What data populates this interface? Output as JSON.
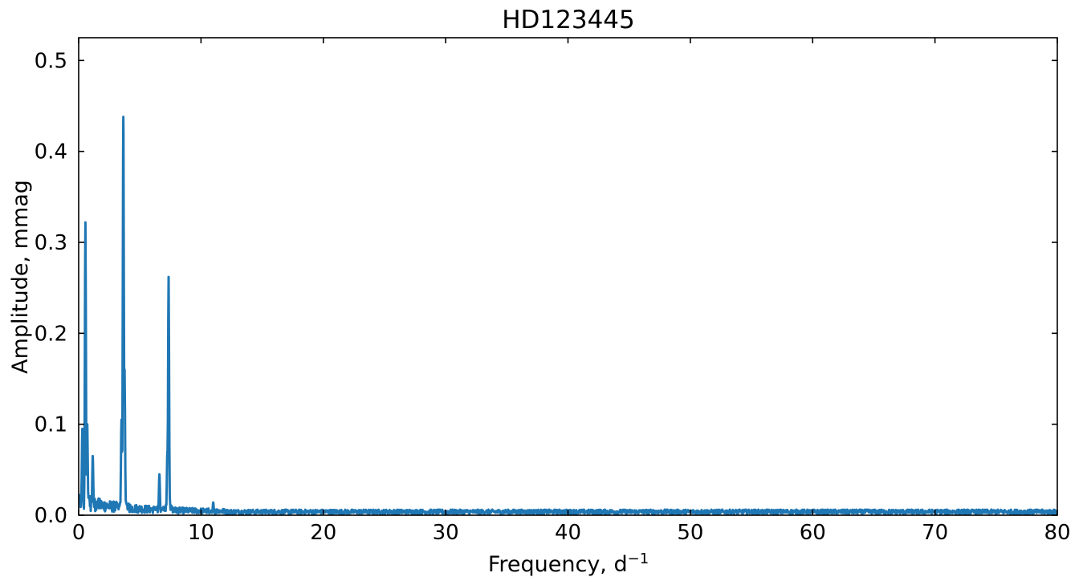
{
  "chart_data": {
    "type": "line",
    "title": "HD123445",
    "xlabel_base": "Frequency, d",
    "xlabel_sup": "−1",
    "ylabel": "Amplitude, mmag",
    "xlim": [
      0,
      80
    ],
    "ylim": [
      0,
      0.525
    ],
    "xticks": [
      0,
      10,
      20,
      30,
      40,
      50,
      60,
      70,
      80
    ],
    "xtick_labels": [
      "0",
      "10",
      "20",
      "30",
      "40",
      "50",
      "60",
      "70",
      "80"
    ],
    "yticks": [
      0.0,
      0.1,
      0.2,
      0.3,
      0.4,
      0.5
    ],
    "ytick_labels": [
      "0.0",
      "0.1",
      "0.2",
      "0.3",
      "0.4",
      "0.5"
    ],
    "grid": false,
    "legend": "none",
    "line_color": "#1f77b4",
    "series": [
      {
        "peaks": [
          {
            "x": 0.3,
            "y": 0.095
          },
          {
            "x": 0.55,
            "y": 0.322
          },
          {
            "x": 0.7,
            "y": 0.1
          },
          {
            "x": 1.15,
            "y": 0.065
          },
          {
            "x": 3.5,
            "y": 0.105
          },
          {
            "x": 3.65,
            "y": 0.438
          },
          {
            "x": 3.75,
            "y": 0.16
          },
          {
            "x": 6.6,
            "y": 0.045
          },
          {
            "x": 7.25,
            "y": 0.07
          },
          {
            "x": 7.35,
            "y": 0.262
          },
          {
            "x": 11.0,
            "y": 0.014
          }
        ],
        "noise_floor": 0.004
      }
    ]
  }
}
